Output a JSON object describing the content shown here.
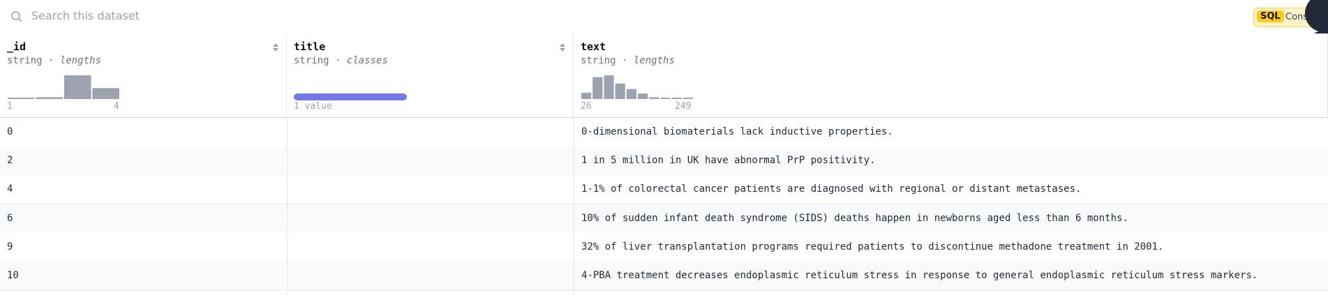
{
  "search": {
    "placeholder": "Search this dataset"
  },
  "toolbar": {
    "sql_label": "SQL",
    "console_label": "Cons"
  },
  "table": {
    "type_separator": "·",
    "columns": [
      {
        "name": "_id",
        "type": "string",
        "stat": "lengths",
        "histogram": {
          "values": [
            1,
            2,
            26,
            12
          ],
          "color": "#9ca3af"
        },
        "min_label": "1",
        "max_label": "4"
      },
      {
        "name": "title",
        "type": "string",
        "stat": "classes",
        "bar_color": "#7479e8",
        "min_label": "1 value"
      },
      {
        "name": "text",
        "type": "string",
        "stat": "lengths",
        "histogram": {
          "values": [
            7,
            24,
            26,
            17,
            11,
            6,
            2,
            1,
            0.5,
            1
          ],
          "color": "#9ca3af"
        },
        "min_label": "26",
        "max_label": "249"
      }
    ],
    "rows": [
      [
        "0",
        "0-dimensional biomaterials lack inductive properties."
      ],
      [
        "2",
        "1 in 5 million in UK have abnormal PrP positivity."
      ],
      [
        "4",
        "1-1% of colorectal cancer patients are diagnosed with regional or distant metastases."
      ],
      [
        "6",
        "10% of sudden infant death syndrome (SIDS) deaths happen in newborns aged less than 6 months."
      ],
      [
        "9",
        "32% of liver transplantation programs required patients to discontinue methadone treatment in 2001."
      ],
      [
        "10",
        "4-PBA treatment decreases endoplasmic reticulum stress in response to general endoplasmic reticulum stress markers."
      ]
    ]
  }
}
